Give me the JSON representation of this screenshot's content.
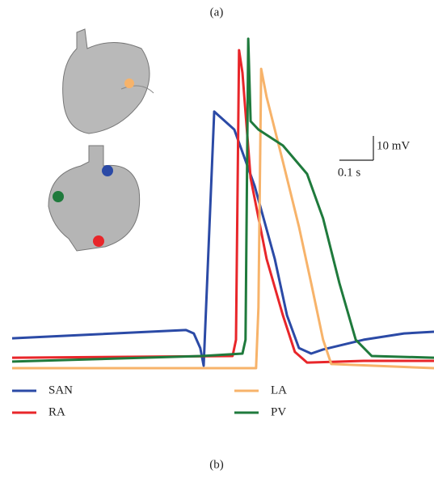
{
  "chart_data": {
    "type": "line",
    "panel_a_label": "(a)",
    "panel_b_label": "(b)",
    "xlim": [
      0,
      1.24
    ],
    "ylim": [
      -95,
      55
    ],
    "scale_bar": {
      "y": {
        "value": 10,
        "label": "10 mV"
      },
      "x": {
        "value": 0.1,
        "label": "0.1 s"
      }
    },
    "series": [
      {
        "name": "SAN",
        "color": "#2b4aa6",
        "x": [
          0,
          0.511,
          0.534,
          0.553,
          0.563,
          0.594,
          0.653,
          0.713,
          0.772,
          0.808,
          0.843,
          0.879,
          0.914,
          1.033,
          1.152,
          1.24
        ],
        "values": [
          -82.7,
          -79.3,
          -80.7,
          -86.7,
          -94,
          10.7,
          3.3,
          -20,
          -50,
          -73.3,
          -86.7,
          -89,
          -87.3,
          -83.3,
          -80.7,
          -80
        ]
      },
      {
        "name": "RA",
        "color": "#e8262a",
        "x": [
          0,
          0.648,
          0.658,
          0.667,
          0.677,
          0.701,
          0.748,
          0.796,
          0.831,
          0.867,
          1.033,
          1.24
        ],
        "values": [
          -90.7,
          -90,
          -83.3,
          36,
          26.7,
          -16.7,
          -50,
          -73.3,
          -88.3,
          -92.7,
          -92,
          -92
        ]
      },
      {
        "name": "LA",
        "color": "#f7b36a",
        "x": [
          0,
          0.717,
          0.724,
          0.732,
          0.748,
          0.796,
          0.843,
          0.879,
          0.914,
          0.938,
          1.24
        ],
        "values": [
          -95,
          -95,
          -70,
          28.3,
          16.7,
          -10,
          -36.7,
          -60,
          -83.3,
          -93.3,
          -95
        ]
      },
      {
        "name": "PV",
        "color": "#1f7a3c",
        "x": [
          0,
          0.558,
          0.677,
          0.686,
          0.694,
          0.701,
          0.724,
          0.796,
          0.867,
          0.914,
          0.962,
          1.01,
          1.057,
          1.24
        ],
        "values": [
          -92.3,
          -90,
          -89,
          -83.3,
          40.7,
          6.7,
          3.3,
          -3.3,
          -15,
          -33.3,
          -60,
          -83.3,
          -90,
          -90.7
        ]
      }
    ]
  }
}
